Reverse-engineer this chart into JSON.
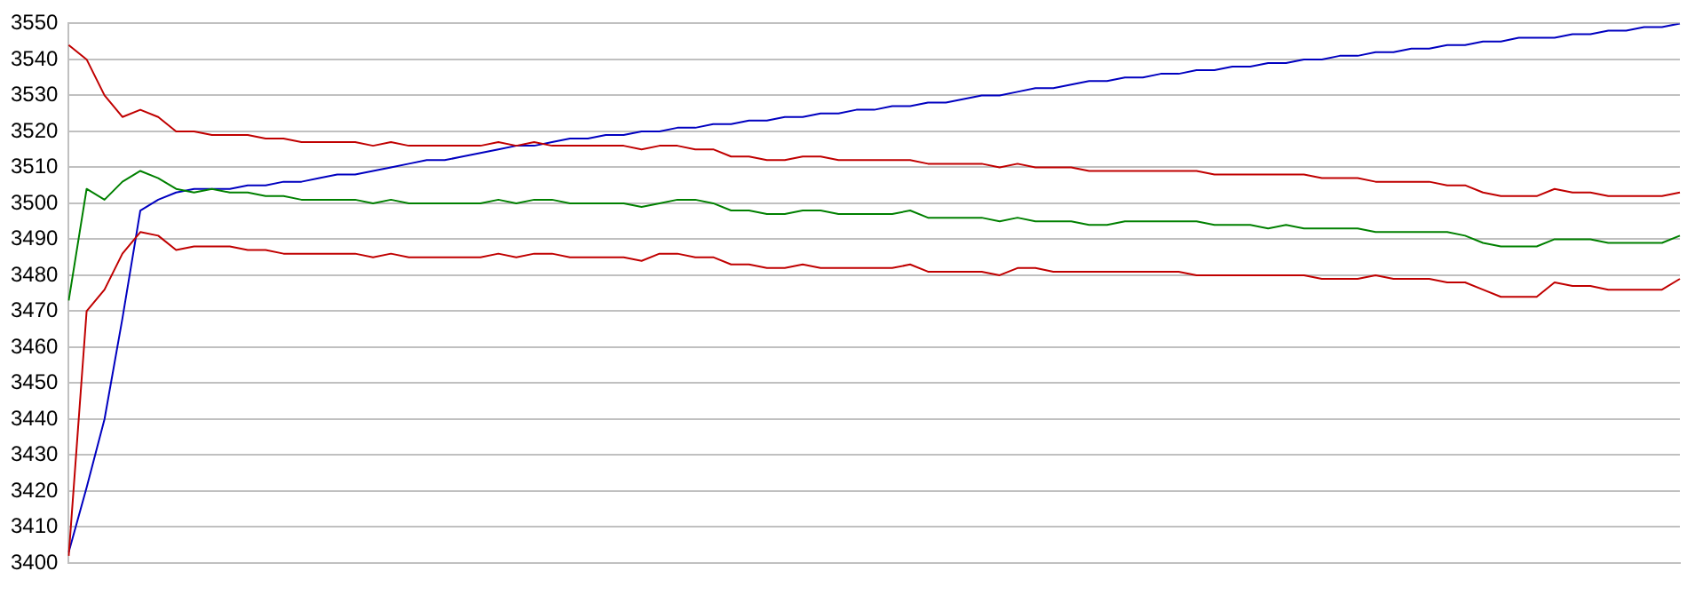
{
  "chart_data": {
    "type": "line",
    "categories": [
      null,
      null,
      null,
      null,
      null,
      null,
      null,
      null,
      null,
      null,
      null,
      null,
      null,
      null,
      null,
      null,
      null,
      null,
      null,
      null,
      null,
      null,
      null,
      null,
      null,
      null,
      null,
      null,
      null,
      null,
      null,
      null,
      null,
      null,
      null,
      null,
      null,
      null,
      null,
      null,
      null,
      null,
      null,
      null,
      null,
      null,
      null,
      null,
      null,
      null,
      null,
      null,
      null,
      null,
      null,
      null,
      null,
      null,
      null,
      null,
      null,
      null,
      null,
      null,
      null,
      null,
      null,
      null,
      null,
      null,
      null,
      null,
      null,
      null,
      null,
      null,
      null,
      null,
      null,
      null,
      null,
      null,
      null,
      null,
      null,
      null,
      null,
      null,
      null,
      null,
      null
    ],
    "series": [
      {
        "color": "#c00000",
        "values": [
          3544,
          3540,
          3530,
          3524,
          3526,
          3524,
          3520,
          3520,
          3519,
          3519,
          3519,
          3518,
          3518,
          3517,
          3517,
          3517,
          3517,
          3516,
          3517,
          3516,
          3516,
          3516,
          3516,
          3516,
          3517,
          3516,
          3517,
          3516,
          3516,
          3516,
          3516,
          3516,
          3515,
          3516,
          3516,
          3515,
          3515,
          3513,
          3513,
          3512,
          3512,
          3513,
          3513,
          3512,
          3512,
          3512,
          3512,
          3512,
          3511,
          3511,
          3511,
          3511,
          3510,
          3511,
          3510,
          3510,
          3510,
          3509,
          3509,
          3509,
          3509,
          3509,
          3509,
          3509,
          3508,
          3508,
          3508,
          3508,
          3508,
          3508,
          3507,
          3507,
          3507,
          3506,
          3506,
          3506,
          3506,
          3505,
          3505,
          3503,
          3502,
          3502,
          3502,
          3504,
          3503,
          3503,
          3502,
          3502,
          3502,
          3502,
          3503
        ]
      },
      {
        "color": "#008000",
        "values": [
          3473,
          3504,
          3501,
          3506,
          3509,
          3507,
          3504,
          3503,
          3504,
          3503,
          3503,
          3502,
          3502,
          3501,
          3501,
          3501,
          3501,
          3500,
          3501,
          3500,
          3500,
          3500,
          3500,
          3500,
          3501,
          3500,
          3501,
          3501,
          3500,
          3500,
          3500,
          3500,
          3499,
          3500,
          3501,
          3501,
          3500,
          3498,
          3498,
          3497,
          3497,
          3498,
          3498,
          3497,
          3497,
          3497,
          3497,
          3498,
          3496,
          3496,
          3496,
          3496,
          3495,
          3496,
          3495,
          3495,
          3495,
          3494,
          3494,
          3495,
          3495,
          3495,
          3495,
          3495,
          3494,
          3494,
          3494,
          3493,
          3494,
          3493,
          3493,
          3493,
          3493,
          3492,
          3492,
          3492,
          3492,
          3492,
          3491,
          3489,
          3488,
          3488,
          3488,
          3490,
          3490,
          3490,
          3489,
          3489,
          3489,
          3489,
          3491
        ]
      },
      {
        "color": "#c00000",
        "values": [
          3402,
          3470,
          3476,
          3486,
          3492,
          3491,
          3487,
          3488,
          3488,
          3488,
          3487,
          3487,
          3486,
          3486,
          3486,
          3486,
          3486,
          3485,
          3486,
          3485,
          3485,
          3485,
          3485,
          3485,
          3486,
          3485,
          3486,
          3486,
          3485,
          3485,
          3485,
          3485,
          3484,
          3486,
          3486,
          3485,
          3485,
          3483,
          3483,
          3482,
          3482,
          3483,
          3482,
          3482,
          3482,
          3482,
          3482,
          3483,
          3481,
          3481,
          3481,
          3481,
          3480,
          3482,
          3482,
          3481,
          3481,
          3481,
          3481,
          3481,
          3481,
          3481,
          3481,
          3480,
          3480,
          3480,
          3480,
          3480,
          3480,
          3480,
          3479,
          3479,
          3479,
          3480,
          3479,
          3479,
          3479,
          3478,
          3478,
          3476,
          3474,
          3474,
          3474,
          3478,
          3477,
          3477,
          3476,
          3476,
          3476,
          3476,
          3479
        ]
      },
      {
        "color": "#0000c0",
        "values": [
          3403,
          3421,
          3440,
          3468,
          3498,
          3501,
          3503,
          3504,
          3504,
          3504,
          3505,
          3505,
          3506,
          3506,
          3507,
          3508,
          3508,
          3509,
          3510,
          3511,
          3512,
          3512,
          3513,
          3514,
          3515,
          3516,
          3516,
          3517,
          3518,
          3518,
          3519,
          3519,
          3520,
          3520,
          3521,
          3521,
          3522,
          3522,
          3523,
          3523,
          3524,
          3524,
          3525,
          3525,
          3526,
          3526,
          3527,
          3527,
          3528,
          3528,
          3529,
          3530,
          3530,
          3531,
          3532,
          3532,
          3533,
          3534,
          3534,
          3535,
          3535,
          3536,
          3536,
          3537,
          3537,
          3538,
          3538,
          3539,
          3539,
          3540,
          3540,
          3541,
          3541,
          3542,
          3542,
          3543,
          3543,
          3544,
          3544,
          3545,
          3545,
          3546,
          3546,
          3546,
          3547,
          3547,
          3548,
          3548,
          3549,
          3549,
          3550
        ]
      }
    ],
    "ylim": [
      3400,
      3550
    ],
    "yticks": [
      3400,
      3410,
      3420,
      3430,
      3440,
      3450,
      3460,
      3470,
      3480,
      3490,
      3500,
      3510,
      3520,
      3530,
      3540,
      3550
    ],
    "grid": "y",
    "legend": false,
    "tick_labels": "y",
    "marker": "none",
    "line_style": "solid"
  }
}
